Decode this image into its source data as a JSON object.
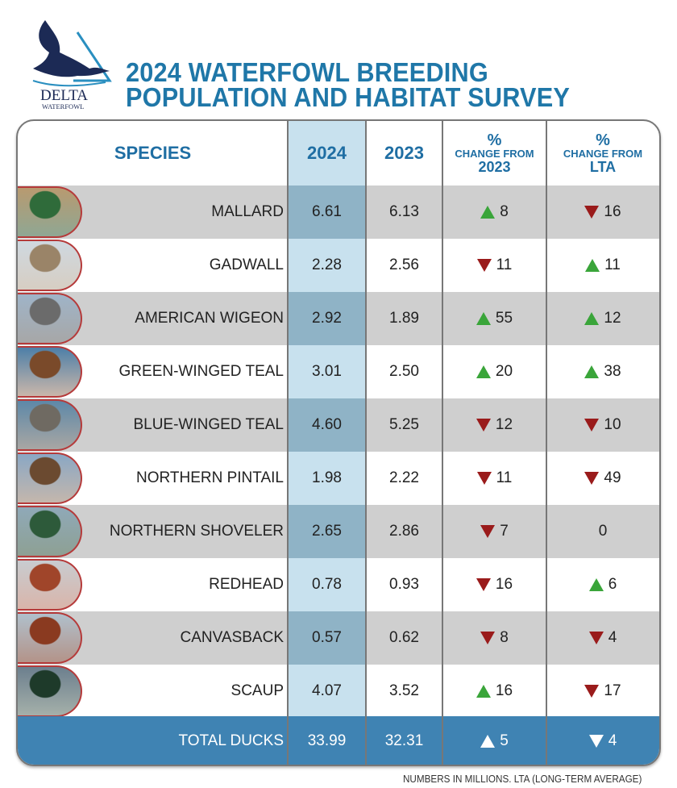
{
  "logo": {
    "text": "DELTA",
    "subtext": "WATERFOWL"
  },
  "title": {
    "line1": "2024 WATERFOWL BREEDING",
    "line2": "POPULATION AND HABITAT SURVEY"
  },
  "headers": {
    "species": "SPECIES",
    "y2024": "2024",
    "y2023": "2023",
    "pct": "%",
    "change_from": "CHANGE FROM",
    "chg_2023": "2023",
    "chg_lta": "LTA"
  },
  "colors": {
    "title": "#1f77a8",
    "highlight": "#c8e1ee",
    "row_grey": "#cfcfcf",
    "total_bg": "#3f83b3",
    "up": "#3aa53a",
    "down": "#9a1b1b"
  },
  "chart_data": {
    "type": "table",
    "columns": [
      "SPECIES",
      "2024",
      "2023",
      "% CHANGE FROM 2023",
      "% CHANGE FROM LTA"
    ],
    "rows": [
      {
        "species": "MALLARD",
        "y2024": "6.61",
        "y2023": "6.13",
        "chg2023": {
          "dir": "up",
          "value": "8"
        },
        "chglta": {
          "dir": "down",
          "value": "16"
        }
      },
      {
        "species": "GADWALL",
        "y2024": "2.28",
        "y2023": "2.56",
        "chg2023": {
          "dir": "down",
          "value": "11"
        },
        "chglta": {
          "dir": "up",
          "value": "11"
        }
      },
      {
        "species": "AMERICAN WIGEON",
        "y2024": "2.92",
        "y2023": "1.89",
        "chg2023": {
          "dir": "up",
          "value": "55"
        },
        "chglta": {
          "dir": "up",
          "value": "12"
        }
      },
      {
        "species": "GREEN-WINGED TEAL",
        "y2024": "3.01",
        "y2023": "2.50",
        "chg2023": {
          "dir": "up",
          "value": "20"
        },
        "chglta": {
          "dir": "up",
          "value": "38"
        }
      },
      {
        "species": "BLUE-WINGED TEAL",
        "y2024": "4.60",
        "y2023": "5.25",
        "chg2023": {
          "dir": "down",
          "value": "12"
        },
        "chglta": {
          "dir": "down",
          "value": "10"
        }
      },
      {
        "species": "NORTHERN PINTAIL",
        "y2024": "1.98",
        "y2023": "2.22",
        "chg2023": {
          "dir": "down",
          "value": "11"
        },
        "chglta": {
          "dir": "down",
          "value": "49"
        }
      },
      {
        "species": "NORTHERN SHOVELER",
        "y2024": "2.65",
        "y2023": "2.86",
        "chg2023": {
          "dir": "down",
          "value": "7"
        },
        "chglta": {
          "dir": "none",
          "value": "0"
        }
      },
      {
        "species": "REDHEAD",
        "y2024": "0.78",
        "y2023": "0.93",
        "chg2023": {
          "dir": "down",
          "value": "16"
        },
        "chglta": {
          "dir": "up",
          "value": "6"
        }
      },
      {
        "species": "CANVASBACK",
        "y2024": "0.57",
        "y2023": "0.62",
        "chg2023": {
          "dir": "down",
          "value": "8"
        },
        "chglta": {
          "dir": "down",
          "value": "4"
        }
      },
      {
        "species": "SCAUP",
        "y2024": "4.07",
        "y2023": "3.52",
        "chg2023": {
          "dir": "up",
          "value": "16"
        },
        "chglta": {
          "dir": "down",
          "value": "17"
        }
      }
    ],
    "total": {
      "species": "TOTAL DUCKS",
      "y2024": "33.99",
      "y2023": "32.31",
      "chg2023": {
        "dir": "up",
        "value": "5"
      },
      "chglta": {
        "dir": "down",
        "value": "4"
      }
    }
  },
  "photo_colors": [
    [
      "#2f6b3a",
      "#b89a70"
    ],
    [
      "#9a8468",
      "#cfd8e0"
    ],
    [
      "#6b6b6b",
      "#9fb4c8"
    ],
    [
      "#7a4a2a",
      "#4d7fa8"
    ],
    [
      "#6f6a62",
      "#5d88a8"
    ],
    [
      "#6b4a30",
      "#8aa7c4"
    ],
    [
      "#2d5a3a",
      "#8fa9b8"
    ],
    [
      "#a0452a",
      "#c8ccd0"
    ],
    [
      "#8a3a20",
      "#b0c0cc"
    ],
    [
      "#1e3a2a",
      "#6c7f8e"
    ]
  ],
  "note": "NUMBERS IN MILLIONS. LTA (LONG-TERM AVERAGE)"
}
